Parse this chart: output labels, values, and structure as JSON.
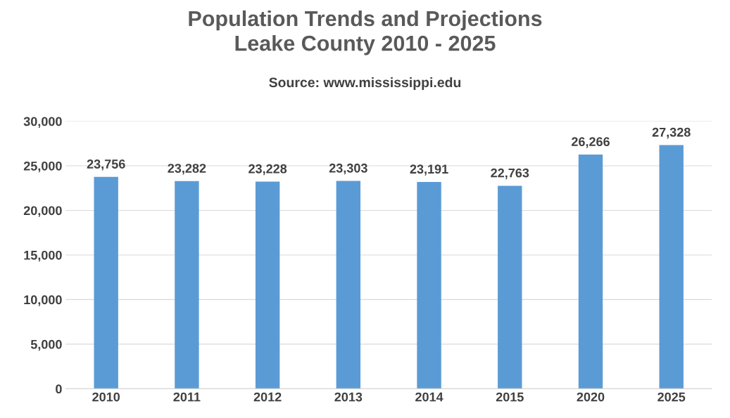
{
  "chart_data": {
    "type": "bar",
    "title": "Population Trends and Projections\nLeake County 2010 - 2025",
    "subtitle": "Source: www.mississippi.edu",
    "categories": [
      "2010",
      "2011",
      "2012",
      "2013",
      "2014",
      "2015",
      "2020",
      "2025"
    ],
    "values": [
      23756,
      23282,
      23228,
      23303,
      23191,
      22763,
      26266,
      27328
    ],
    "value_labels": [
      "23,756",
      "23,282",
      "23,228",
      "23,303",
      "23,191",
      "22,763",
      "26,266",
      "27,328"
    ],
    "color": "#5b9bd5",
    "ylim": [
      0,
      30000
    ],
    "yticks": [
      {
        "value": 0,
        "label": "0"
      },
      {
        "value": 5000,
        "label": "5,000"
      },
      {
        "value": 10000,
        "label": "10,000"
      },
      {
        "value": 15000,
        "label": "15,000"
      },
      {
        "value": 20000,
        "label": "20,000"
      },
      {
        "value": 25000,
        "label": "25,000"
      },
      {
        "value": 30000,
        "label": "30,000"
      }
    ],
    "grid": "y",
    "legend": false
  }
}
